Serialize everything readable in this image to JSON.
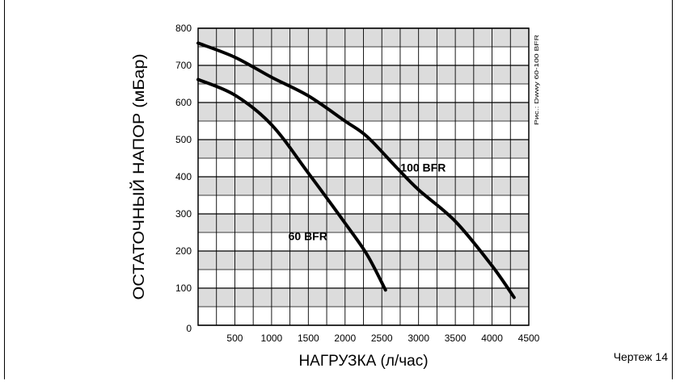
{
  "chart_data": {
    "type": "line",
    "xlabel": "НАГРУЗКА (л/час)",
    "ylabel": "ОСТАТОЧНЫЙ НАПОР (мБар)",
    "xlim": [
      0,
      4500
    ],
    "ylim": [
      0,
      800
    ],
    "x_major_step": 500,
    "x_tick_labels": [
      "500",
      "1000",
      "1500",
      "2000",
      "2500",
      "3000",
      "3500",
      "4000",
      "4500"
    ],
    "y_tick_labels": [
      "0",
      "100",
      "200",
      "300",
      "400",
      "500",
      "600",
      "700",
      "800"
    ],
    "grid": true,
    "grid_style": "alternating grey/white horizontal bands with vertical lines every 250 units",
    "band_color": "#dcdcdc",
    "series": [
      {
        "name": "100 BFR",
        "x": [
          0,
          500,
          1000,
          1500,
          2000,
          2300,
          2700,
          3000,
          3500,
          4000,
          4300
        ],
        "y": [
          760,
          722,
          668,
          618,
          550,
          508,
          425,
          365,
          280,
          160,
          75
        ]
      },
      {
        "name": "60 BFR",
        "x": [
          0,
          500,
          1000,
          1500,
          2000,
          2300,
          2550
        ],
        "y": [
          662,
          620,
          540,
          410,
          275,
          190,
          95
        ]
      }
    ],
    "side_note": "Рис.: Dwwy 60-100 BFR"
  },
  "caption": "Чертеж 14"
}
